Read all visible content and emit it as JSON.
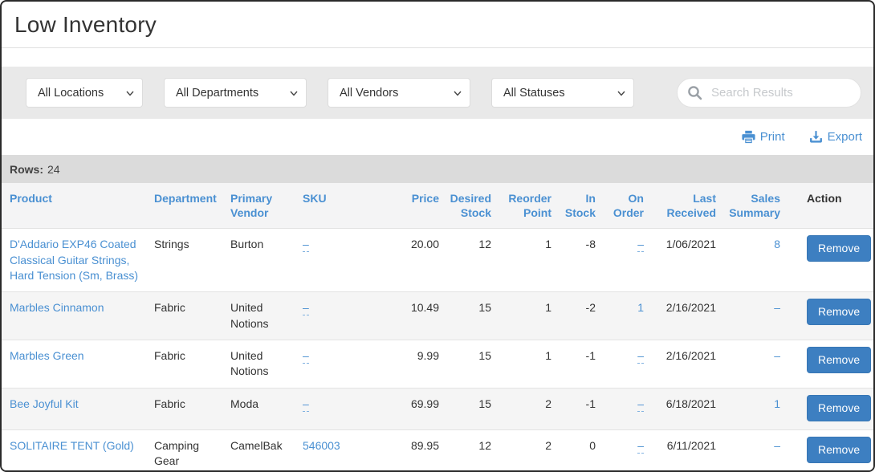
{
  "page": {
    "title": "Low Inventory"
  },
  "filters": {
    "location": "All Locations",
    "department": "All Departments",
    "vendor": "All Vendors",
    "status": "All Statuses"
  },
  "search": {
    "placeholder": "Search Results",
    "value": ""
  },
  "toolbar": {
    "print_label": "Print",
    "export_label": "Export"
  },
  "rows_bar": {
    "label": "Rows:",
    "count": "24"
  },
  "table": {
    "headers": [
      "Product",
      "Department",
      "Primary Vendor",
      "SKU",
      "Price",
      "Desired Stock",
      "Reorder Point",
      "In Stock",
      "On Order",
      "Last Received",
      "Sales Summary",
      "Action"
    ],
    "rows": [
      {
        "product": "D'Addario EXP46 Coated Classical Guitar Strings, Hard Tension (Sm, Brass)",
        "department": "Strings",
        "vendor": "Burton",
        "sku": {
          "text": "–",
          "style": "dash-link"
        },
        "price": "20.00",
        "desired_stock": "12",
        "reorder_point": "1",
        "in_stock": "-8",
        "on_order": {
          "text": "–",
          "style": "dash-link"
        },
        "last_received": "1/06/2021",
        "sales_summary": {
          "text": "8",
          "style": "link"
        },
        "action": "Remove"
      },
      {
        "product": "Marbles Cinnamon",
        "department": "Fabric",
        "vendor": "United Notions",
        "sku": {
          "text": "–",
          "style": "dash-link"
        },
        "price": "10.49",
        "desired_stock": "15",
        "reorder_point": "1",
        "in_stock": "-2",
        "on_order": {
          "text": "1",
          "style": "link"
        },
        "last_received": "2/16/2021",
        "sales_summary": {
          "text": "–",
          "style": "dash"
        },
        "action": "Remove"
      },
      {
        "product": "Marbles Green",
        "department": "Fabric",
        "vendor": "United Notions",
        "sku": {
          "text": "–",
          "style": "dash-link"
        },
        "price": "9.99",
        "desired_stock": "15",
        "reorder_point": "1",
        "in_stock": "-1",
        "on_order": {
          "text": "–",
          "style": "dash-link"
        },
        "last_received": "2/16/2021",
        "sales_summary": {
          "text": "–",
          "style": "dash"
        },
        "action": "Remove"
      },
      {
        "product": "Bee Joyful Kit",
        "department": "Fabric",
        "vendor": "Moda",
        "sku": {
          "text": "–",
          "style": "dash-link"
        },
        "price": "69.99",
        "desired_stock": "15",
        "reorder_point": "2",
        "in_stock": "-1",
        "on_order": {
          "text": "–",
          "style": "dash-link"
        },
        "last_received": "6/18/2021",
        "sales_summary": {
          "text": "1",
          "style": "link"
        },
        "action": "Remove"
      },
      {
        "product": "SOLITAIRE TENT (Gold)",
        "department": "Camping Gear",
        "vendor": "CamelBak",
        "sku": {
          "text": "546003",
          "style": "link"
        },
        "price": "89.95",
        "desired_stock": "12",
        "reorder_point": "2",
        "in_stock": "0",
        "on_order": {
          "text": "–",
          "style": "dash-link"
        },
        "last_received": "6/11/2021",
        "sales_summary": {
          "text": "–",
          "style": "dash"
        },
        "action": "Remove"
      }
    ]
  },
  "colors": {
    "link_blue": "#4a90d2",
    "button_blue": "#3d7fc1",
    "filter_band": "#e9e9e9",
    "rows_bar": "#dbdbdb"
  }
}
